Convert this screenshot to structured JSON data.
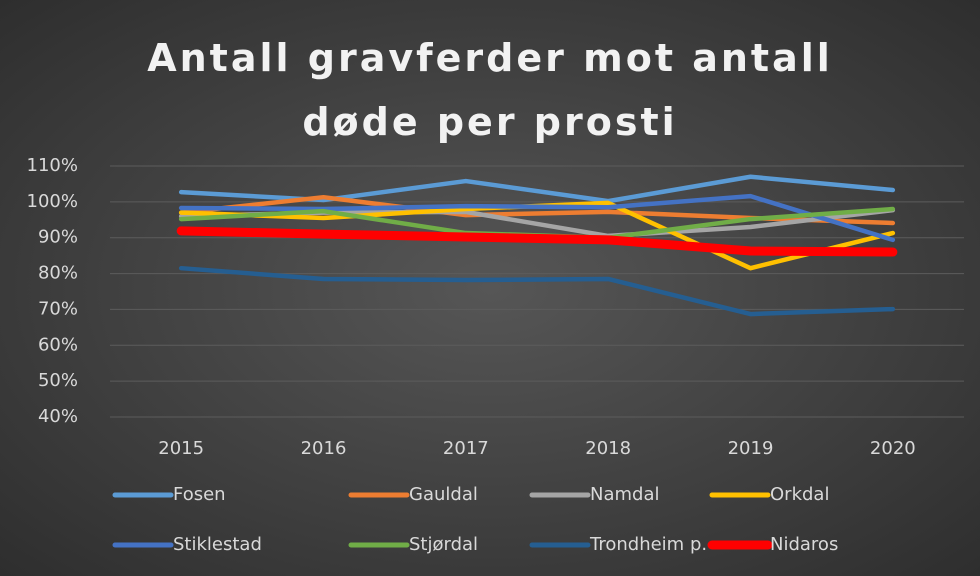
{
  "chart_data": {
    "type": "line",
    "title": "Antall gravferder mot antall døde per prosti",
    "categories": [
      "2015",
      "2016",
      "2017",
      "2018",
      "2019",
      "2020"
    ],
    "ylim": [
      40,
      110
    ],
    "yticks": [
      {
        "value": 40,
        "label": "40%"
      },
      {
        "value": 50,
        "label": "50%"
      },
      {
        "value": 60,
        "label": "60%"
      },
      {
        "value": 70,
        "label": "70%"
      },
      {
        "value": 80,
        "label": "80%"
      },
      {
        "value": 90,
        "label": "90%"
      },
      {
        "value": 100,
        "label": "100%"
      },
      {
        "value": 110,
        "label": "110%"
      }
    ],
    "grid": true,
    "legend": "bottom",
    "series": [
      {
        "name": "Fosen",
        "color": "#5b9bd5",
        "values": [
          102.7,
          100.5,
          105.8,
          100.2,
          107,
          103.3
        ]
      },
      {
        "name": "Gauldal",
        "color": "#ed7d31",
        "values": [
          97,
          101.3,
          96.3,
          97.2,
          95.5,
          94.1
        ]
      },
      {
        "name": "Namdal",
        "color": "#a5a5a5",
        "values": [
          96,
          97,
          97.2,
          90.5,
          93,
          97.7
        ]
      },
      {
        "name": "Orkdal",
        "color": "#ffc000",
        "values": [
          97,
          95.5,
          98,
          99.7,
          81.5,
          91.3
        ]
      },
      {
        "name": "Stiklestad",
        "color": "#4472c4",
        "values": [
          98.3,
          98,
          98.8,
          98.5,
          101.6,
          89.4
        ]
      },
      {
        "name": "Stjørdal",
        "color": "#70ad47",
        "values": [
          95.2,
          97.4,
          91.3,
          90,
          95.2,
          98
        ]
      },
      {
        "name": "Trondheim p.",
        "color": "#255e91",
        "values": [
          81.5,
          78.5,
          78.2,
          78.5,
          68.7,
          70.1
        ]
      },
      {
        "name": "Nidaros",
        "color": "#ff0000",
        "values": [
          91.9,
          91,
          90.2,
          89.4,
          86.3,
          86
        ]
      }
    ]
  }
}
